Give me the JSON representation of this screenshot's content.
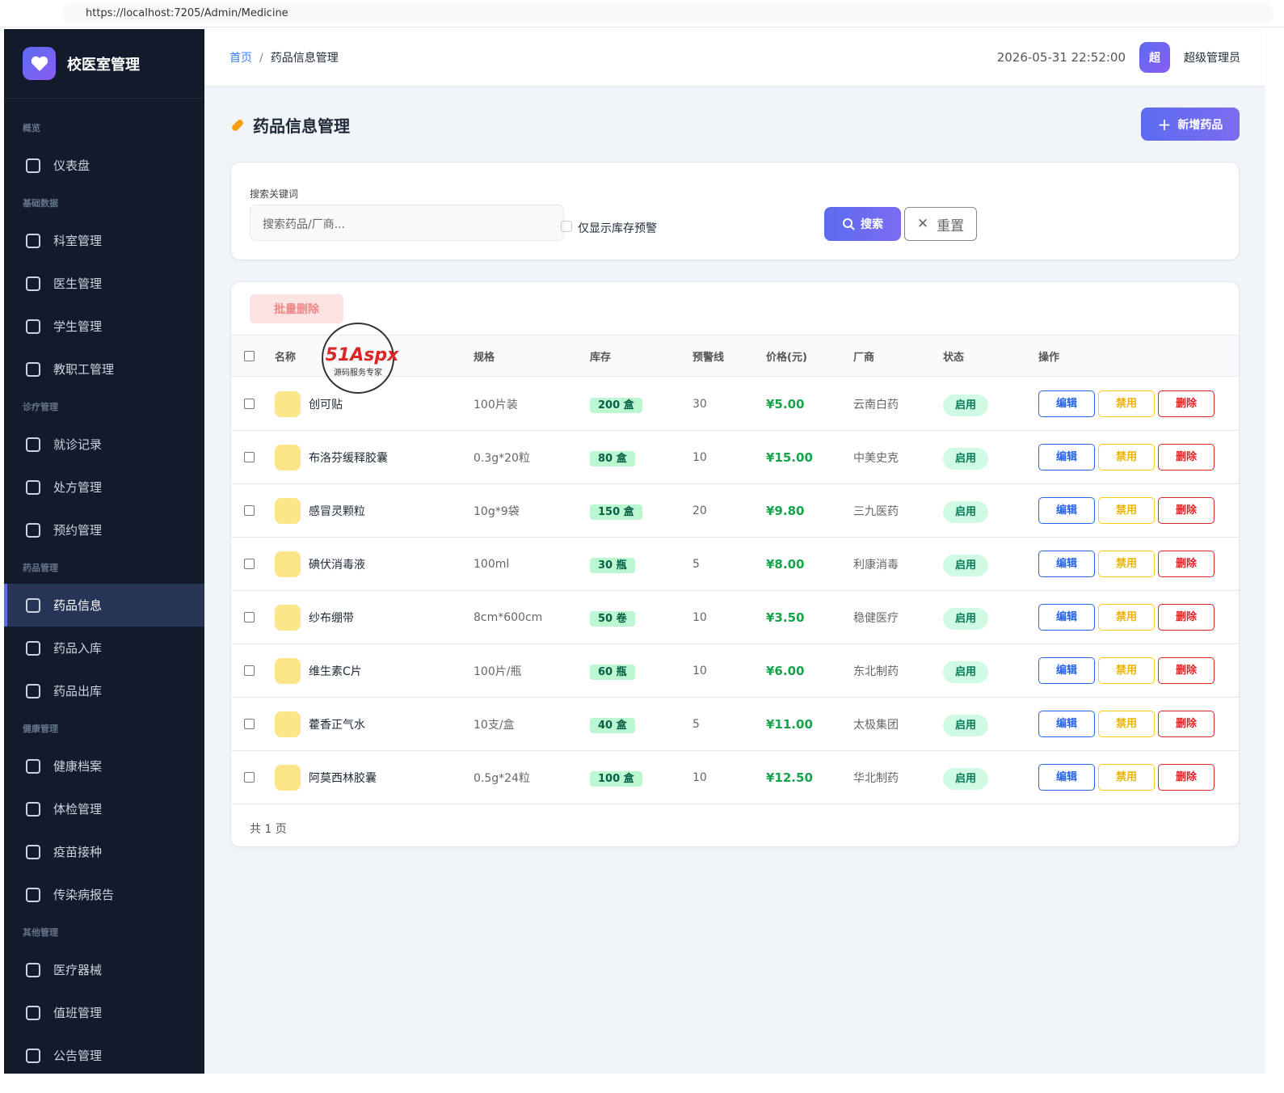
{
  "browser": {
    "url": "https://localhost:7205/Admin/Medicine"
  },
  "sidebar": {
    "brand": "校医室管理",
    "groups": [
      {
        "title": "概览",
        "items": [
          "仪表盘"
        ]
      },
      {
        "title": "基础数据",
        "items": [
          "科室管理",
          "医生管理",
          "学生管理",
          "教职工管理"
        ]
      },
      {
        "title": "诊疗管理",
        "items": [
          "就诊记录",
          "处方管理",
          "预约管理"
        ]
      },
      {
        "title": "药品管理",
        "items": [
          "药品信息",
          "药品入库",
          "药品出库"
        ]
      },
      {
        "title": "健康管理",
        "items": [
          "健康档案",
          "体检管理",
          "疫苗接种",
          "传染病报告"
        ]
      },
      {
        "title": "其他管理",
        "items": [
          "医疗器械",
          "值班管理",
          "公告管理"
        ]
      }
    ],
    "active": "药品信息"
  },
  "header": {
    "breadcrumb": [
      "首页",
      "药品信息管理"
    ],
    "datetime": "2026-05-31 22:52:00",
    "avatar": "超",
    "user": "超级管理员"
  },
  "page": {
    "title": "药品信息管理",
    "add_button": "新增药品"
  },
  "search": {
    "label": "搜索关键词",
    "placeholder": "搜索药品/厂商...",
    "checkbox_label": "仅显示库存预警",
    "search_button": "搜索",
    "reset_button": "重置"
  },
  "batch_delete": "批量删除",
  "watermark": {
    "brand": "51Aspx",
    "tagline": "源码服务专家"
  },
  "table": {
    "columns": [
      "名称",
      "规格",
      "库存",
      "预警线",
      "价格(元)",
      "厂商",
      "状态",
      "操作"
    ],
    "actions": [
      "编辑",
      "禁用",
      "删除"
    ],
    "rows": [
      [
        "创可贴",
        "100片装",
        "200 盒",
        30,
        "¥5.00",
        "云南白药",
        "启用"
      ],
      [
        "布洛芬缓释胶囊",
        "0.3g*20粒",
        "80 盒",
        10,
        "¥15.00",
        "中美史克",
        "启用"
      ],
      [
        "感冒灵颗粒",
        "10g*9袋",
        "150 盒",
        20,
        "¥9.80",
        "三九医药",
        "启用"
      ],
      [
        "碘伏消毒液",
        "100ml",
        "30 瓶",
        5,
        "¥8.00",
        "利康消毒",
        "启用"
      ],
      [
        "纱布绷带",
        "8cm*600cm",
        "50 卷",
        10,
        "¥3.50",
        "稳健医疗",
        "启用"
      ],
      [
        "维生素C片",
        "100片/瓶",
        "60 瓶",
        10,
        "¥6.00",
        "东北制药",
        "启用"
      ],
      [
        "藿香正气水",
        "10支/盒",
        "40 盒",
        5,
        "¥11.00",
        "太极集团",
        "启用"
      ],
      [
        "阿莫西林胶囊",
        "0.5g*24粒",
        "100 盒",
        10,
        "¥12.50",
        "华北制药",
        "启用"
      ]
    ]
  },
  "pagination": "共 1 页"
}
